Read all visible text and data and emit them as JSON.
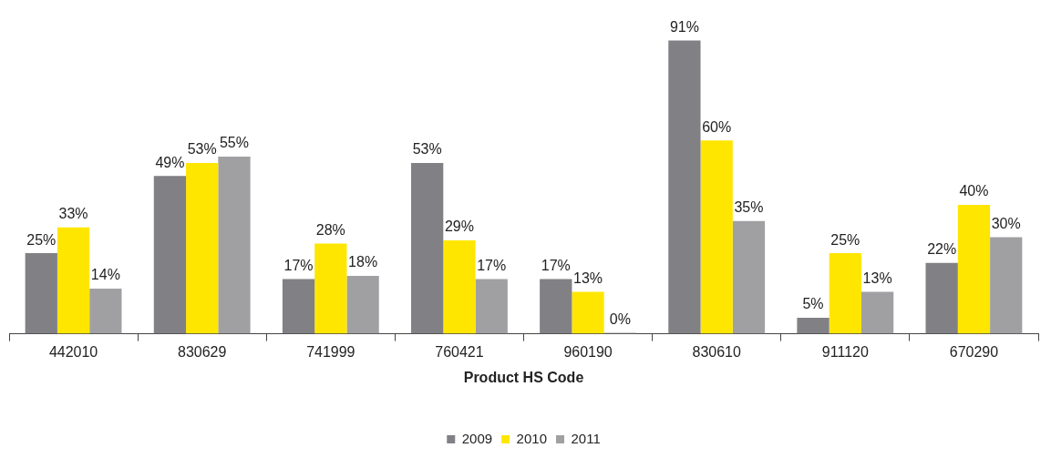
{
  "chart_data": {
    "type": "bar",
    "xlabel": "Product HS Code",
    "categories": [
      "442010",
      "830629",
      "741999",
      "760421",
      "960190",
      "830610",
      "911120",
      "670290"
    ],
    "series": [
      {
        "name": "2009",
        "color": "#808085",
        "values": [
          25,
          49,
          17,
          53,
          17,
          91,
          5,
          22
        ],
        "value_labels": [
          "25%",
          "49%",
          "17%",
          "53%",
          "17%",
          "91%",
          "5%",
          "22%"
        ]
      },
      {
        "name": "2010",
        "color": "#ffe600",
        "values": [
          33,
          53,
          28,
          29,
          13,
          60,
          25,
          40
        ],
        "value_labels": [
          "33%",
          "53%",
          "28%",
          "29%",
          "13%",
          "60%",
          "25%",
          "40%"
        ]
      },
      {
        "name": "2011",
        "color": "#a0a0a3",
        "values": [
          14,
          55,
          18,
          17,
          0,
          35,
          13,
          30
        ],
        "value_labels": [
          "14%",
          "55%",
          "18%",
          "17%",
          "0%",
          "35%",
          "13%",
          "30%"
        ]
      }
    ],
    "legend": "bottom",
    "grid": false
  }
}
